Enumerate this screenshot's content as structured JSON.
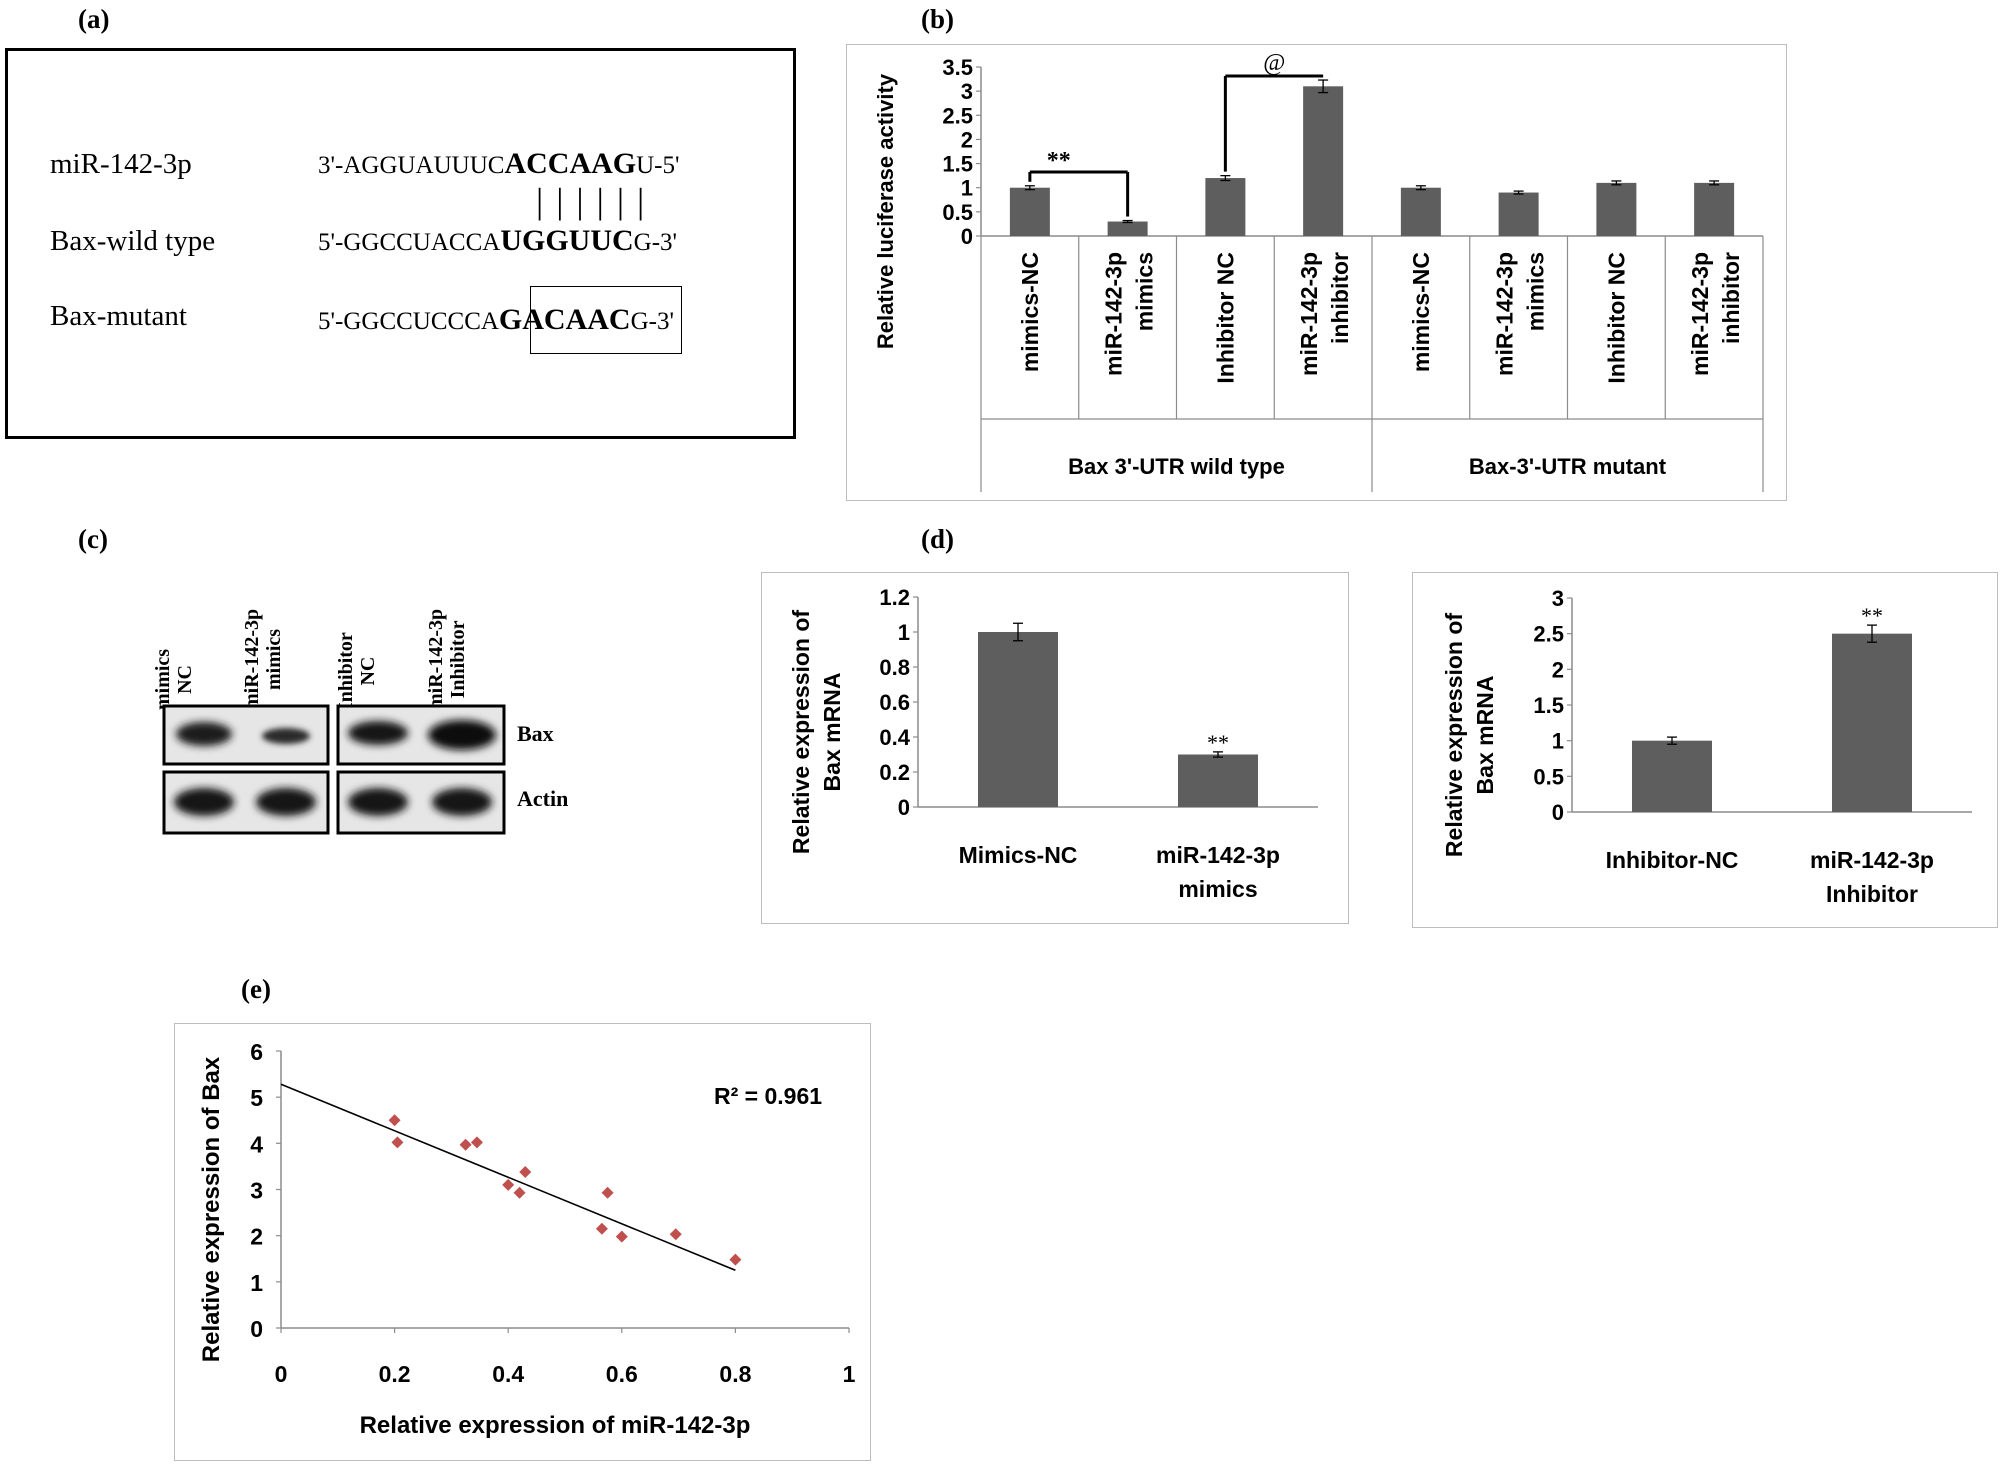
{
  "panel_labels": {
    "a": "(a)",
    "b": "(b)",
    "c": "(c)",
    "d": "(d)",
    "e": "(e)"
  },
  "panel_a": {
    "rows": [
      {
        "name": "miR-142-3p",
        "prefix": "3'-AGGUAUUUC",
        "core": "ACCAAG",
        "suffix": "U-5'"
      },
      {
        "name": "Bax-wild type",
        "prefix": "5'-GGCCUACCA",
        "core": "UGGUUC",
        "suffix": "G-3'"
      },
      {
        "name": "Bax-mutant",
        "prefix": "5'-GGCCUCCCA",
        "core": "GACAAC",
        "suffix": "G-3'"
      }
    ],
    "pairing_bars": "| | | | | |"
  },
  "chart_data": [
    {
      "id": "b",
      "type": "bar",
      "ylabel": "Relative luciferase activity",
      "ylim": [
        0,
        3.5
      ],
      "yticks": [
        "0",
        "0.5",
        "1",
        "1.5",
        "2",
        "2.5",
        "3",
        "3.5"
      ],
      "categories": [
        [
          "mimics-NC"
        ],
        [
          "miR-142-3p",
          "mimics"
        ],
        [
          "Inhibitor NC"
        ],
        [
          "miR-142-3p",
          "inhibitor"
        ],
        [
          "mimics-NC"
        ],
        [
          "miR-142-3p",
          "mimics"
        ],
        [
          "Inhibitor NC"
        ],
        [
          "miR-142-3p",
          "inhibitor"
        ]
      ],
      "values": [
        1.0,
        0.3,
        1.2,
        3.1,
        1.0,
        0.9,
        1.1,
        1.1
      ],
      "errors": [
        0.04,
        0.02,
        0.05,
        0.13,
        0.04,
        0.03,
        0.04,
        0.04
      ],
      "groups": [
        "Bax 3'-UTR wild type",
        "Bax-3'-UTR mutant"
      ],
      "annotations": [
        {
          "text": "**",
          "from": 0,
          "to": 1
        },
        {
          "text": "@",
          "from": 2,
          "to": 3
        }
      ],
      "color": "#5e5e5e"
    },
    {
      "id": "d1",
      "type": "bar",
      "ylabel": [
        "Relative expression of",
        "Bax mRNA"
      ],
      "ylim": [
        0,
        1.2
      ],
      "yticks": [
        "0",
        "0.2",
        "0.4",
        "0.6",
        "0.8",
        "1",
        "1.2"
      ],
      "categories": [
        [
          "Mimics-NC"
        ],
        [
          "miR-142-3p",
          "mimics"
        ]
      ],
      "values": [
        1.0,
        0.3
      ],
      "errors": [
        0.05,
        0.015
      ],
      "marks": [
        "",
        "**"
      ],
      "color": "#5e5e5e"
    },
    {
      "id": "d2",
      "type": "bar",
      "ylabel": [
        "Relative expression of",
        "Bax mRNA"
      ],
      "ylim": [
        0,
        3
      ],
      "yticks": [
        "0",
        "0.5",
        "1",
        "1.5",
        "2",
        "2.5",
        "3"
      ],
      "categories": [
        [
          "Inhibitor-NC"
        ],
        [
          "miR-142-3p",
          "Inhibitor"
        ]
      ],
      "values": [
        1.0,
        2.5
      ],
      "errors": [
        0.05,
        0.12
      ],
      "marks": [
        "",
        "**"
      ],
      "color": "#5e5e5e"
    },
    {
      "id": "e",
      "type": "scatter",
      "xlabel": "Relative expression of miR-142-3p",
      "ylabel": "Relative expression of Bax",
      "xlim": [
        0,
        1
      ],
      "ylim": [
        0,
        6
      ],
      "xticks": [
        "0",
        "0.2",
        "0.4",
        "0.6",
        "0.8",
        "1"
      ],
      "yticks": [
        "0",
        "1",
        "2",
        "3",
        "4",
        "5",
        "6"
      ],
      "points": [
        [
          0.2,
          4.5
        ],
        [
          0.205,
          4.02
        ],
        [
          0.325,
          3.97
        ],
        [
          0.345,
          4.02
        ],
        [
          0.4,
          3.1
        ],
        [
          0.42,
          2.93
        ],
        [
          0.43,
          3.38
        ],
        [
          0.565,
          2.15
        ],
        [
          0.575,
          2.93
        ],
        [
          0.6,
          1.98
        ],
        [
          0.695,
          2.03
        ],
        [
          0.8,
          1.48
        ]
      ],
      "trendline": {
        "x0": 0,
        "y0": 5.28,
        "x1": 0.8,
        "y1": 1.25
      },
      "r2": "R² = 0.961",
      "point_color": "#c0504d"
    }
  ],
  "panel_c": {
    "lanes": [
      [
        "mimics",
        "NC"
      ],
      [
        "miR-142-3p",
        "mimics"
      ],
      [
        "Inhibitor",
        "NC"
      ],
      [
        "miR-142-3p",
        "Inhibitor"
      ]
    ],
    "bands": [
      "Bax",
      "Actin"
    ]
  }
}
